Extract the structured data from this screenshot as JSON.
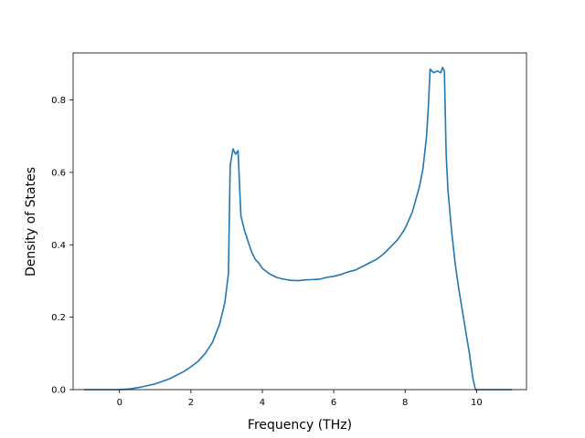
{
  "chart_data": {
    "type": "line",
    "title": "",
    "xlabel": "Frequency (THz)",
    "ylabel": "Density of States",
    "xlim": [
      -1.3,
      11.4
    ],
    "ylim": [
      0,
      0.93
    ],
    "x_ticks": [
      0,
      2,
      4,
      6,
      8,
      10
    ],
    "y_ticks": [
      0.0,
      0.2,
      0.4,
      0.6,
      0.8
    ],
    "x_tick_labels": [
      "0",
      "2",
      "4",
      "6",
      "8",
      "10"
    ],
    "y_tick_labels": [
      "0.0",
      "0.2",
      "0.4",
      "0.6",
      "0.8"
    ],
    "grid": false,
    "legend": "none",
    "series": [
      {
        "color": "#1f77b4",
        "x": [
          -1.0,
          0.0,
          0.3,
          0.6,
          1.0,
          1.4,
          1.8,
          2.0,
          2.2,
          2.4,
          2.6,
          2.8,
          2.95,
          3.05,
          3.1,
          3.18,
          3.25,
          3.32,
          3.4,
          3.5,
          3.6,
          3.7,
          3.8,
          3.9,
          4.0,
          4.2,
          4.4,
          4.6,
          4.8,
          5.0,
          5.2,
          5.4,
          5.6,
          5.8,
          6.0,
          6.2,
          6.4,
          6.6,
          6.8,
          7.0,
          7.2,
          7.4,
          7.6,
          7.8,
          8.0,
          8.2,
          8.4,
          8.5,
          8.6,
          8.65,
          8.7,
          8.8,
          8.9,
          9.0,
          9.05,
          9.1,
          9.15,
          9.2,
          9.3,
          9.4,
          9.5,
          9.6,
          9.7,
          9.8,
          9.9,
          9.97,
          10.0,
          11.0
        ],
        "y": [
          0.0,
          0.0,
          0.002,
          0.007,
          0.016,
          0.03,
          0.05,
          0.063,
          0.078,
          0.1,
          0.13,
          0.18,
          0.24,
          0.32,
          0.62,
          0.665,
          0.65,
          0.66,
          0.48,
          0.44,
          0.41,
          0.38,
          0.36,
          0.35,
          0.335,
          0.32,
          0.31,
          0.305,
          0.302,
          0.301,
          0.303,
          0.304,
          0.305,
          0.31,
          0.313,
          0.318,
          0.325,
          0.33,
          0.34,
          0.35,
          0.36,
          0.375,
          0.395,
          0.415,
          0.445,
          0.49,
          0.56,
          0.61,
          0.7,
          0.78,
          0.885,
          0.875,
          0.88,
          0.875,
          0.89,
          0.88,
          0.65,
          0.55,
          0.44,
          0.35,
          0.28,
          0.22,
          0.16,
          0.1,
          0.03,
          0.0,
          0.0,
          0.0
        ]
      }
    ]
  }
}
